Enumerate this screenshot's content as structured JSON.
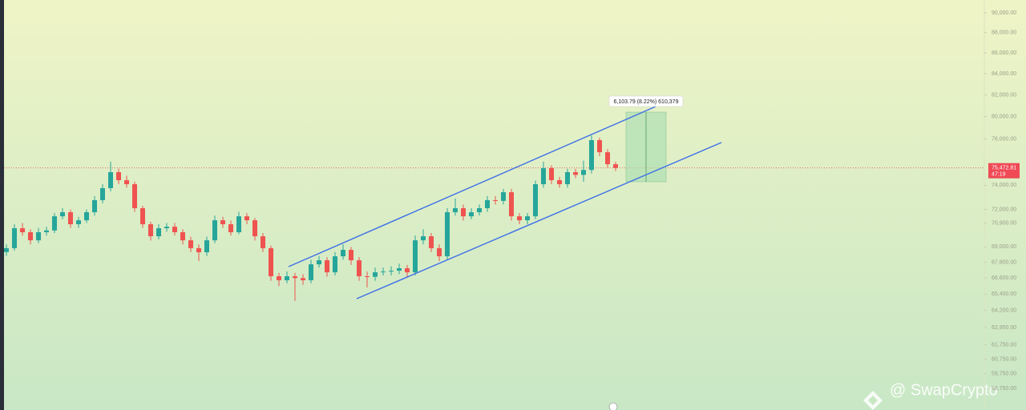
{
  "chart_data": {
    "type": "candlestick",
    "up_color": "#26a69a",
    "down_color": "#ef5350",
    "yscale": "log",
    "ylim": [
      57340,
      91320
    ],
    "yticks": [
      {
        "value": 90000,
        "label": "90,000.00"
      },
      {
        "value": 88000,
        "label": "88,000.00"
      },
      {
        "value": 86000,
        "label": "86,000.00"
      },
      {
        "value": 84000,
        "label": "84,000.00"
      },
      {
        "value": 82000,
        "label": "82,000.00"
      },
      {
        "value": 80000,
        "label": "80,000.00"
      },
      {
        "value": 78000,
        "label": "78,000.00"
      },
      {
        "value": 74000,
        "label": "74,000.00"
      },
      {
        "value": 72000,
        "label": "72,000.00"
      },
      {
        "value": 70900,
        "label": "70,900.00"
      },
      {
        "value": 69000,
        "label": "69,000.00"
      },
      {
        "value": 67800,
        "label": "67,800.00"
      },
      {
        "value": 66600,
        "label": "66,600.00"
      },
      {
        "value": 65400,
        "label": "65,400.00"
      },
      {
        "value": 64200,
        "label": "64,200.00"
      },
      {
        "value": 62950,
        "label": "62,950.00"
      },
      {
        "value": 61750,
        "label": "61,750.00"
      },
      {
        "value": 60750,
        "label": "60,750.00"
      },
      {
        "value": 59750,
        "label": "59,750.00"
      },
      {
        "value": 58750,
        "label": "58,750.00"
      }
    ],
    "open": [
      68600,
      68900,
      70480,
      70160,
      69520,
      70160,
      70300,
      71440,
      71770,
      70800,
      71120,
      71770,
      72760,
      73760,
      75110,
      74430,
      74090,
      72100,
      70800,
      69840,
      70480,
      70600,
      70160,
      69520,
      68900,
      68580,
      69520,
      71120,
      70800,
      70160,
      71440,
      71120,
      69840,
      68900,
      66740,
      66440,
      66740,
      66600,
      66440,
      67650,
      67960,
      67040,
      68270,
      68770,
      67960,
      66740,
      66700,
      67040,
      67100,
      67160,
      67350,
      67040,
      69520,
      69840,
      68900,
      68270,
      71770,
      72100,
      71440,
      71770,
      72100,
      72760,
      72700,
      73420,
      71440,
      71120,
      71440,
      74090,
      75450,
      74430,
      74090,
      75110,
      74880,
      75300,
      77890,
      76830,
      75790
    ],
    "high": [
      69200,
      70800,
      70900,
      70400,
      70500,
      70600,
      71700,
      72100,
      72000,
      71400,
      72000,
      73100,
      74100,
      76000,
      75400,
      74800,
      74300,
      72300,
      71000,
      70800,
      70900,
      70900,
      70400,
      69800,
      69200,
      69800,
      71500,
      71400,
      71100,
      71800,
      71700,
      71300,
      70100,
      69100,
      67000,
      67100,
      67000,
      66900,
      68000,
      68300,
      68200,
      68600,
      69200,
      69000,
      68200,
      67100,
      67400,
      67400,
      67500,
      67700,
      67600,
      69900,
      70400,
      70100,
      69200,
      72100,
      72900,
      72400,
      72100,
      72400,
      73100,
      73100,
      73700,
      73700,
      71700,
      71700,
      74400,
      76000,
      75700,
      74700,
      75400,
      75400,
      76100,
      78300,
      78100,
      77100,
      76000
    ],
    "low": [
      68300,
      68700,
      69900,
      69200,
      69300,
      69900,
      70100,
      71200,
      70500,
      70500,
      70900,
      71500,
      72500,
      73500,
      74100,
      73800,
      71800,
      70500,
      69500,
      69600,
      70200,
      69900,
      69200,
      68600,
      67900,
      68300,
      69300,
      70500,
      69900,
      70000,
      70800,
      69500,
      68600,
      66400,
      66000,
      66200,
      64900,
      66100,
      66200,
      67400,
      66700,
      66800,
      68000,
      67600,
      66400,
      65900,
      66400,
      66800,
      66800,
      66900,
      66700,
      66800,
      69200,
      68600,
      67900,
      68000,
      71500,
      71100,
      71200,
      71500,
      71800,
      72400,
      72400,
      71100,
      70800,
      70800,
      71200,
      73800,
      74100,
      73800,
      73800,
      74600,
      74300,
      75000,
      76500,
      75500,
      75200
    ],
    "close": [
      68900,
      70480,
      70160,
      69520,
      70160,
      70300,
      71440,
      71770,
      70800,
      71120,
      71770,
      72760,
      73760,
      75110,
      74430,
      74090,
      72100,
      70800,
      69840,
      70480,
      70600,
      70160,
      69520,
      68900,
      68580,
      69520,
      71120,
      70800,
      70160,
      71440,
      71120,
      69840,
      68900,
      66740,
      66440,
      66740,
      66600,
      66440,
      67650,
      67960,
      67040,
      68270,
      68770,
      67960,
      66740,
      66700,
      67040,
      67100,
      67160,
      67350,
      67040,
      69520,
      69840,
      68900,
      68270,
      71770,
      72100,
      71440,
      71770,
      72100,
      72760,
      72700,
      73420,
      71440,
      71120,
      71440,
      74090,
      75450,
      74430,
      74090,
      75110,
      74880,
      75300,
      77890,
      76830,
      75790,
      75470
    ],
    "last_price": {
      "value": 75472.81,
      "label": "75,472.81"
    },
    "countdown": "47:19",
    "measure_label": "6,103.79 (8.22%) 610,379",
    "watermark": "@ SwapCrypto"
  }
}
